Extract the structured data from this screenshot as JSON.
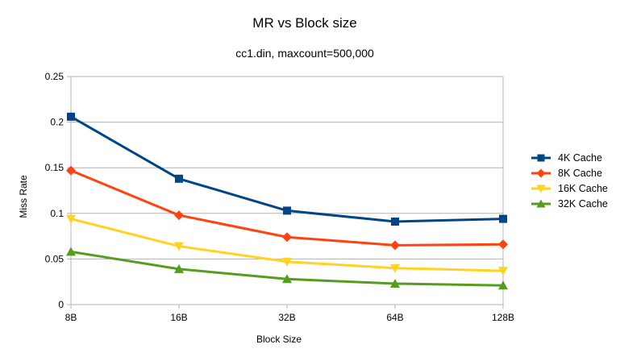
{
  "chart_data": {
    "type": "line",
    "title": "MR vs Block size",
    "subtitle": "cc1.din, maxcount=500,000",
    "xlabel": "Block Size",
    "ylabel": "Miss Rate",
    "categories": [
      "8B",
      "16B",
      "32B",
      "64B",
      "128B"
    ],
    "ylim": [
      0,
      0.25
    ],
    "yticks": [
      0,
      0.05,
      0.1,
      0.15,
      0.2,
      0.25
    ],
    "ytick_labels": [
      "0",
      "0.05",
      "0.1",
      "0.15",
      "0.2",
      "0.25"
    ],
    "grid": true,
    "legend_position": "right",
    "series": [
      {
        "name": "4K Cache",
        "color": "#004586",
        "marker": "square",
        "values": [
          0.206,
          0.138,
          0.103,
          0.091,
          0.094
        ]
      },
      {
        "name": "8K Cache",
        "color": "#ff420e",
        "marker": "diamond",
        "values": [
          0.147,
          0.098,
          0.074,
          0.065,
          0.066
        ]
      },
      {
        "name": "16K Cache",
        "color": "#ffd320",
        "marker": "triangle-down",
        "values": [
          0.094,
          0.064,
          0.047,
          0.04,
          0.037
        ]
      },
      {
        "name": "32K Cache",
        "color": "#579d1c",
        "marker": "triangle-up",
        "values": [
          0.058,
          0.039,
          0.028,
          0.023,
          0.021
        ]
      }
    ]
  }
}
